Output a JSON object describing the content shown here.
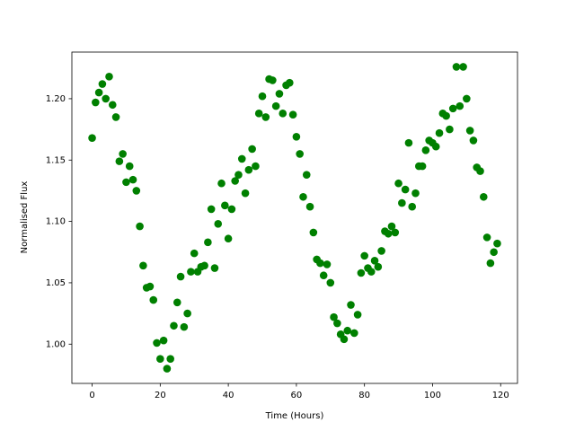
{
  "chart_data": {
    "type": "scatter",
    "xlabel": "Time (Hours)",
    "ylabel": "Normalised Flux",
    "color": "#008000",
    "x": [
      0,
      1,
      2,
      3,
      4,
      5,
      6,
      7,
      8,
      9,
      10,
      11,
      12,
      13,
      14,
      15,
      16,
      17,
      18,
      19,
      20,
      21,
      22,
      23,
      24,
      25,
      26,
      27,
      28,
      29,
      30,
      31,
      32,
      33,
      34,
      35,
      36,
      37,
      38,
      39,
      40,
      41,
      42,
      43,
      44,
      45,
      46,
      47,
      48,
      49,
      50,
      51,
      52,
      53,
      54,
      55,
      56,
      57,
      58,
      59,
      60,
      61,
      62,
      63,
      64,
      65,
      66,
      67,
      68,
      69,
      70,
      71,
      72,
      73,
      74,
      75,
      76,
      77,
      78,
      79,
      80,
      81,
      82,
      83,
      84,
      85,
      86,
      87,
      88,
      89,
      90,
      91,
      92,
      93,
      94,
      95,
      96,
      97,
      98,
      99,
      100,
      101,
      102,
      103,
      104,
      105,
      106,
      107,
      108,
      109,
      110,
      111,
      112,
      113,
      114,
      115,
      116,
      117,
      118,
      119
    ],
    "values": [
      1.168,
      1.197,
      1.205,
      1.212,
      1.2,
      1.218,
      1.195,
      1.185,
      1.149,
      1.155,
      1.132,
      1.145,
      1.134,
      1.125,
      1.096,
      1.064,
      1.046,
      1.047,
      1.036,
      1.001,
      0.988,
      1.003,
      0.98,
      0.988,
      1.015,
      1.034,
      1.055,
      1.014,
      1.025,
      1.059,
      1.074,
      1.059,
      1.063,
      1.064,
      1.083,
      1.11,
      1.062,
      1.098,
      1.131,
      1.113,
      1.086,
      1.11,
      1.133,
      1.138,
      1.151,
      1.123,
      1.142,
      1.159,
      1.145,
      1.188,
      1.202,
      1.185,
      1.216,
      1.215,
      1.194,
      1.204,
      1.188,
      1.211,
      1.213,
      1.187,
      1.169,
      1.155,
      1.12,
      1.138,
      1.112,
      1.091,
      1.069,
      1.066,
      1.056,
      1.065,
      1.05,
      1.022,
      1.017,
      1.008,
      1.004,
      1.011,
      1.032,
      1.009,
      1.024,
      1.058,
      1.072,
      1.062,
      1.059,
      1.068,
      1.063,
      1.076,
      1.092,
      1.09,
      1.096,
      1.091,
      1.131,
      1.115,
      1.126,
      1.164,
      1.112,
      1.123,
      1.145,
      1.145,
      1.158,
      1.166,
      1.164,
      1.161,
      1.172,
      1.188,
      1.186,
      1.175,
      1.192,
      1.226,
      1.194,
      1.226,
      1.2,
      1.174,
      1.166,
      1.144,
      1.141,
      1.12,
      1.087,
      1.066,
      1.075,
      1.082
    ],
    "xlim": [
      -5.95,
      124.95
    ],
    "ylim": [
      0.968,
      1.238
    ],
    "xticks": [
      0,
      20,
      40,
      60,
      80,
      100,
      120
    ],
    "yticks": [
      {
        "value": 1.0,
        "label": "1.00"
      },
      1.05,
      {
        "value": 1.1,
        "label": "1.10"
      },
      1.15,
      {
        "value": 1.2,
        "label": "1.20"
      }
    ]
  }
}
